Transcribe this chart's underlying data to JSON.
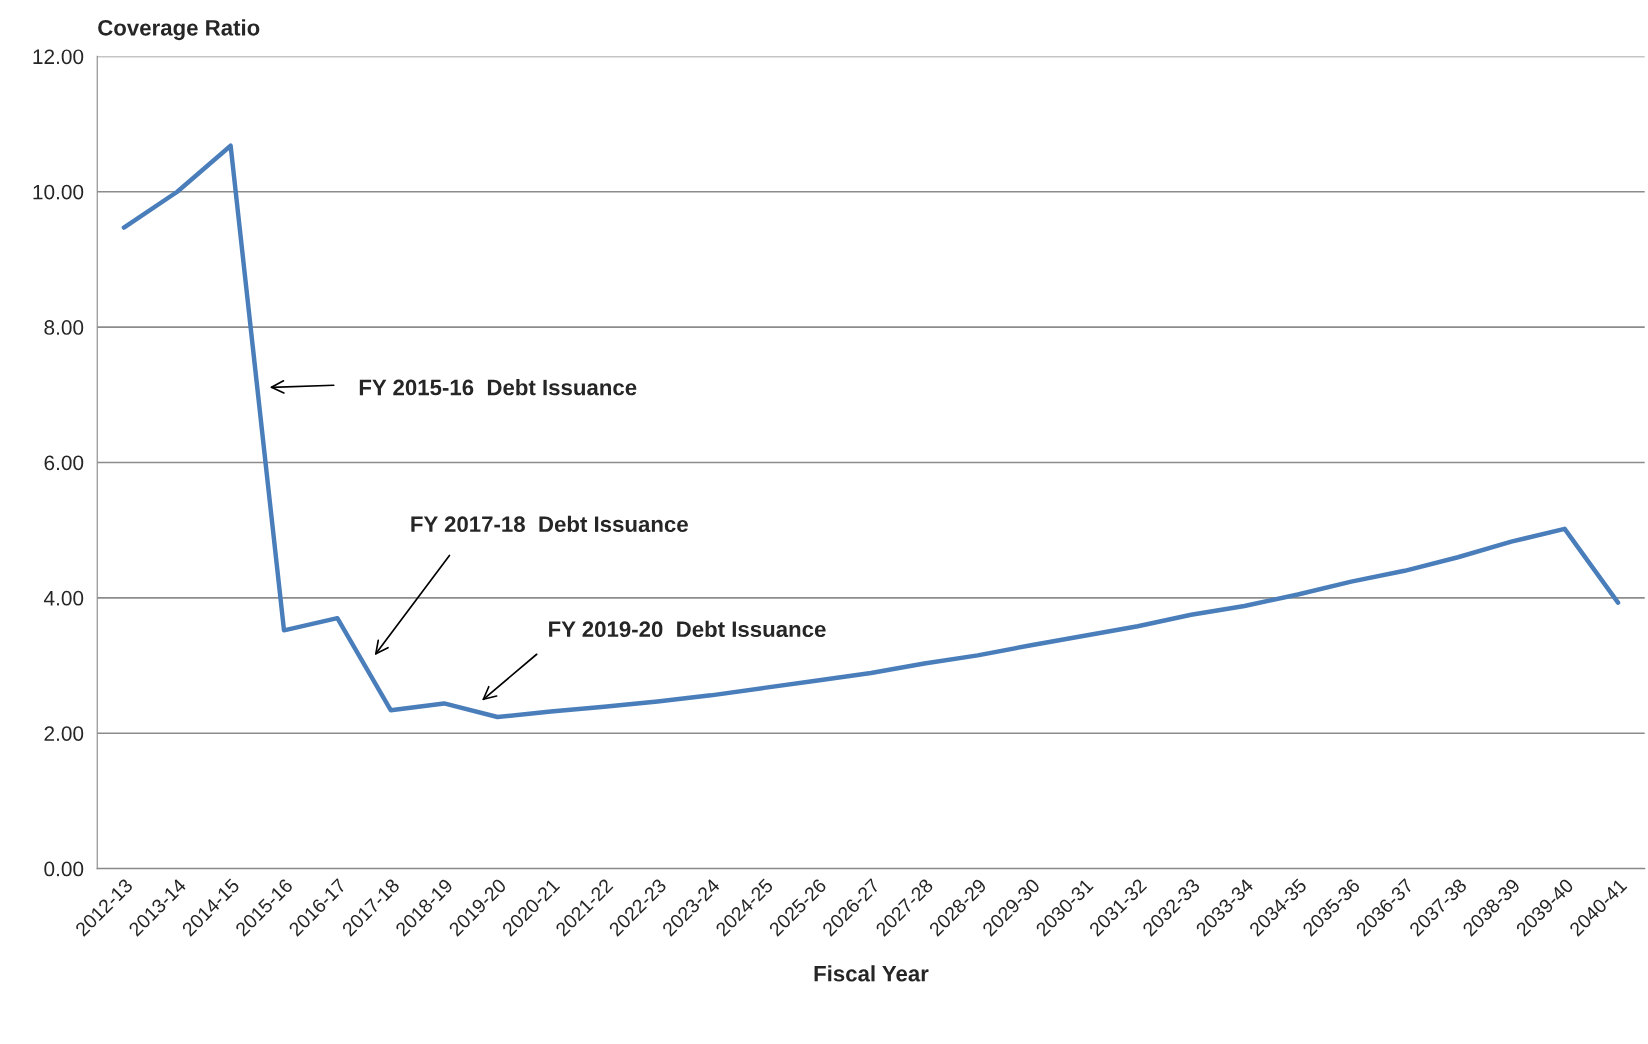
{
  "chart_data": {
    "type": "line",
    "ylabel": "Coverage Ratio",
    "xlabel": "Fiscal Year",
    "categories": [
      "2012-13",
      "2013-14",
      "2014-15",
      "2015-16",
      "2016-17",
      "2017-18",
      "2018-19",
      "2019-20",
      "2020-21",
      "2021-22",
      "2022-23",
      "2023-24",
      "2024-25",
      "2025-26",
      "2026-27",
      "2027-28",
      "2028-29",
      "2029-30",
      "2030-31",
      "2031-32",
      "2032-33",
      "2033-34",
      "2034-35",
      "2035-36",
      "2036-37",
      "2037-38",
      "2038-39",
      "2039-40",
      "2040-41"
    ],
    "series": [
      {
        "color": "#4a7ebb",
        "values": [
          9.47,
          10.0,
          10.68,
          3.52,
          3.7,
          2.34,
          2.44,
          2.24,
          2.32,
          2.39,
          2.47,
          2.56,
          2.67,
          2.78,
          2.89,
          3.03,
          3.15,
          3.3,
          3.44,
          3.58,
          3.75,
          3.88,
          4.05,
          4.24,
          4.4,
          4.6,
          4.83,
          5.02,
          3.93
        ]
      }
    ],
    "ylim": [
      0,
      12
    ],
    "yticks": [
      {
        "value": 0,
        "label": "0.00"
      },
      {
        "value": 2,
        "label": "2.00"
      },
      {
        "value": 4,
        "label": "4.00"
      },
      {
        "value": 6,
        "label": "6.00"
      },
      {
        "value": 8,
        "label": "8.00"
      },
      {
        "value": 10,
        "label": "10.00"
      },
      {
        "value": 12,
        "label": "12.00"
      }
    ],
    "grid": "y",
    "marker": "none",
    "line_style": "solid",
    "legend": false,
    "annotations": [
      "FY 2015-16  Debt Issuance",
      "FY 2017-18  Debt Issuance",
      "FY 2019-20  Debt Issuance"
    ]
  }
}
